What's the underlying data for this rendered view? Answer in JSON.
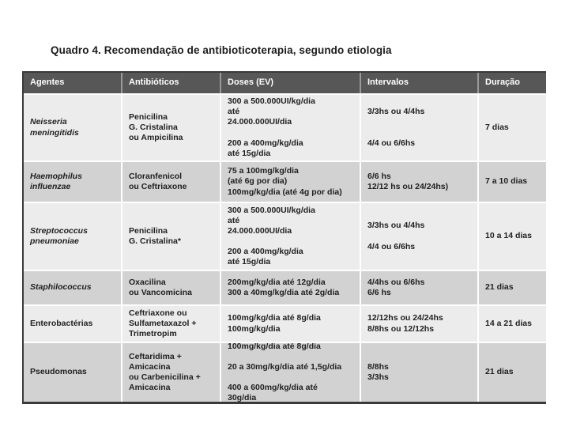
{
  "page": {
    "title": "Quadro 4. Recomendação de antibioticoterapia, segundo etiologia"
  },
  "colors": {
    "header_bg": "#575757",
    "header_text": "#ffffff",
    "row_light": "#ececec",
    "row_dark": "#d2d2d2",
    "body_text": "#1f1f1f",
    "border": "#3a3a3a"
  },
  "table": {
    "headers": {
      "agentes": "Agentes",
      "antibioticos": "Antibióticos",
      "doses": "Doses (EV)",
      "intervalos": "Intervalos",
      "duracao": "Duração"
    },
    "rows": [
      {
        "agente": "Neisseria\nmeningitidis",
        "antibioticos": "Penicilina\nG. Cristalina\nou Ampicilina",
        "doses": "300 a 500.000UI/kg/dia\naté\n24.000.000UI/dia\n\n200 a 400mg/kg/dia\naté 15g/dia",
        "intervalos": "3/3hs ou 4/4hs\n\n\n4/4 ou 6/6hs",
        "duracao": "7 dias"
      },
      {
        "agente": "Haemophilus\ninfluenzae",
        "antibioticos": "Cloranfenicol\nou Ceftriaxone",
        "doses": "75 a 100mg/kg/dia\n(até 6g por dia)\n100mg/kg/dia (até 4g por dia)",
        "intervalos": "6/6 hs\n12/12 hs ou 24/24hs)",
        "duracao": "7 a 10 dias"
      },
      {
        "agente": "Streptococcus\npneumoniae",
        "antibioticos": "Penicilina\nG. Cristalina*",
        "doses": "300 a 500.000UI/kg/dia\naté\n24.000.000UI/dia\n\n200 a 400mg/kg/dia\naté 15g/dia",
        "intervalos": "3/3hs ou 4/4hs\n\n4/4 ou 6/6hs",
        "duracao": "10 a 14 dias"
      },
      {
        "agente": "Staphilococcus",
        "antibioticos": "Oxacilina\nou Vancomicina",
        "doses": "200mg/kg/dia até 12g/dia\n300 a 40mg/kg/dia até 2g/dia",
        "intervalos": "4/4hs ou 6/6hs\n6/6 hs",
        "duracao": "21 dias"
      },
      {
        "agente": "Enterobactérias",
        "antibioticos": "Ceftriaxone ou\nSulfametaxazol +\nTrimetropim",
        "doses": "100mg/kg/dia até 8g/dia\n100mg/kg/dia",
        "intervalos": "12/12hs ou 24/24hs\n8/8hs ou 12/12hs",
        "duracao": "14 a 21 dias"
      },
      {
        "agente": "Pseudomonas",
        "antibioticos": "Ceftaridima +\nAmicacina\nou Carbenicilina +\nAmicacina",
        "doses": "100mg/kg/dia até 8g/dia\n\n20 a 30mg/kg/dia até 1,5g/dia\n\n400 a 600mg/kg/dia até\n30g/dia",
        "intervalos": "8/8hs\n3/3hs",
        "duracao": "21 dias"
      }
    ]
  }
}
